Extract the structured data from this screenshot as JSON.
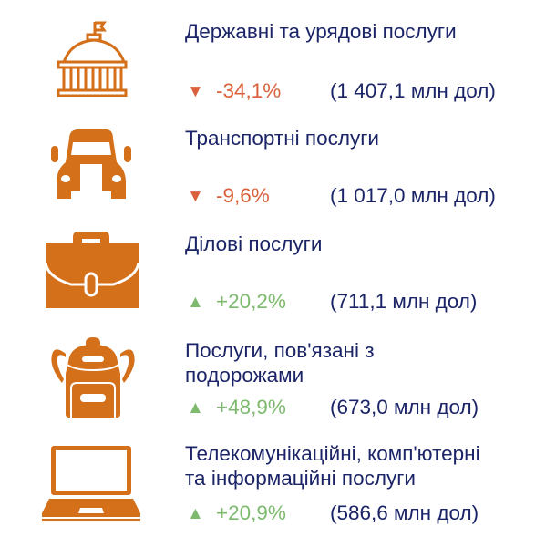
{
  "colors": {
    "icon": "#d46f1a",
    "text": "#1b2467",
    "negative": "#d9603b",
    "positive": "#7dba6e"
  },
  "items": [
    {
      "icon": "government-building-icon",
      "title": "Державні та урядові послуги",
      "arrow": "▼",
      "change": "-34,1%",
      "amount": "(1 407,1 млн дол)"
    },
    {
      "icon": "truck-icon",
      "title": "Транспортні послуги",
      "arrow": "▼",
      "change": "-9,6%",
      "amount": "(1 017,0 млн дол)"
    },
    {
      "icon": "briefcase-icon",
      "title": "Ділові послуги",
      "arrow": "▲",
      "change": "+20,2%",
      "amount": "(711,1 млн дол)"
    },
    {
      "icon": "backpack-icon",
      "title_lines": [
        "Послуги, пов'язані з",
        "подорожами"
      ],
      "arrow": "▲",
      "change": "+48,9%",
      "amount": "(673,0 млн дол)"
    },
    {
      "icon": "laptop-icon",
      "title_lines": [
        "Телекомунікаційні, комп'ютерні",
        "та інформаційні послуги"
      ],
      "arrow": "▲",
      "change": "+20,9%",
      "amount": "(586,6 млн дол)"
    }
  ]
}
